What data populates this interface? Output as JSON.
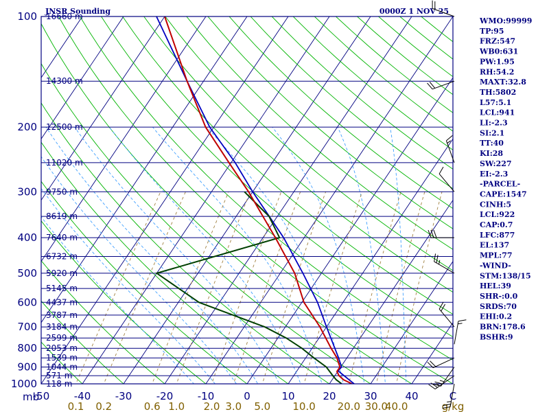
{
  "chart_data": {
    "type": "skew-t",
    "title_left": "JNSR Sounding",
    "title_right": "0000Z  1 NOV 25",
    "pressure_levels": [
      100,
      200,
      300,
      400,
      500,
      600,
      700,
      800,
      900,
      1000
    ],
    "pressure_unit": "mb",
    "temperature_ticks": [
      "-50",
      "-40",
      "-30",
      "-20",
      "-10",
      "0",
      "10",
      "20",
      "30",
      "40"
    ],
    "mixing_ratio_ticks": [
      "0.1",
      "0.2",
      "0.6",
      "1.0",
      "2.0",
      "3.0",
      "5.0",
      "10.0",
      "20.0",
      "30.0",
      "40.0"
    ],
    "mixing_ratio_unit": "g/kg",
    "height_labels": [
      {
        "p": 100,
        "text": "16660 m"
      },
      {
        "p": 150,
        "text": "14300 m"
      },
      {
        "p": 200,
        "text": "12500 m"
      },
      {
        "p": 250,
        "text": "11020 m"
      },
      {
        "p": 300,
        "text": "9750 m"
      },
      {
        "p": 350,
        "text": "8619 m"
      },
      {
        "p": 400,
        "text": "7640 m"
      },
      {
        "p": 450,
        "text": "6732 m"
      },
      {
        "p": 500,
        "text": "5920 m"
      },
      {
        "p": 550,
        "text": "5145 m"
      },
      {
        "p": 600,
        "text": "4437 m"
      },
      {
        "p": 650,
        "text": "3787 m"
      },
      {
        "p": 700,
        "text": "3184 m"
      },
      {
        "p": 750,
        "text": "2599 m"
      },
      {
        "p": 800,
        "text": "2053 m"
      },
      {
        "p": 850,
        "text": "1539 m"
      },
      {
        "p": 900,
        "text": "1044 m"
      },
      {
        "p": 950,
        "text": "571 m"
      },
      {
        "p": 1000,
        "text": "118 m"
      }
    ],
    "temperature_profile": [
      {
        "p": 1000,
        "t": 25.5
      },
      {
        "p": 975,
        "t": 22.8
      },
      {
        "p": 950,
        "t": 21.0
      },
      {
        "p": 925,
        "t": 19.8
      },
      {
        "p": 900,
        "t": 19.8
      },
      {
        "p": 850,
        "t": 17.6
      },
      {
        "p": 800,
        "t": 14.6
      },
      {
        "p": 700,
        "t": 8.4
      },
      {
        "p": 600,
        "t": 0.5
      },
      {
        "p": 500,
        "t": -6.5
      },
      {
        "p": 400,
        "t": -17.0
      },
      {
        "p": 300,
        "t": -31.0
      },
      {
        "p": 250,
        "t": -40.5
      },
      {
        "p": 200,
        "t": -52.0
      },
      {
        "p": 150,
        "t": -64.0
      },
      {
        "p": 100,
        "t": -80.0
      }
    ],
    "dewpoint_profile": [
      {
        "p": 1000,
        "t": 23.0
      },
      {
        "p": 975,
        "t": 21.0
      },
      {
        "p": 950,
        "t": 19.5
      },
      {
        "p": 900,
        "t": 16.5
      },
      {
        "p": 850,
        "t": 12.0
      },
      {
        "p": 800,
        "t": 7.5
      },
      {
        "p": 750,
        "t": 2.0
      },
      {
        "p": 700,
        "t": -5.0
      },
      {
        "p": 600,
        "t": -25.0
      },
      {
        "p": 500,
        "t": -40.0
      },
      {
        "p": 400,
        "t": -16.0
      },
      {
        "p": 350,
        "t": -22.0
      },
      {
        "p": 300,
        "t": -32.0
      }
    ],
    "parcel_profile": [
      {
        "p": 1000,
        "t": 26.0
      },
      {
        "p": 922,
        "t": 20.0
      },
      {
        "p": 900,
        "t": 20.2
      },
      {
        "p": 850,
        "t": 18.0
      },
      {
        "p": 800,
        "t": 15.5
      },
      {
        "p": 700,
        "t": 10.0
      },
      {
        "p": 600,
        "t": 3.8
      },
      {
        "p": 500,
        "t": -4.5
      },
      {
        "p": 400,
        "t": -15.0
      },
      {
        "p": 300,
        "t": -30.0
      },
      {
        "p": 250,
        "t": -39.0
      },
      {
        "p": 200,
        "t": -51.0
      },
      {
        "p": 150,
        "t": -64.0
      },
      {
        "p": 100,
        "t": -82.0
      }
    ],
    "colors": {
      "frame": "#000080",
      "isobar": "#000080",
      "isotherm": "#000080",
      "dry_adiabat": "#00b400",
      "moist_adiabat": "#40a0ff",
      "mixing_ratio": "#a08040",
      "temperature": "#c00000",
      "dewpoint": "#004000",
      "parcel": "#0000c0",
      "barb": "#000000"
    },
    "winds": [
      {
        "p": 1000,
        "dir": 190,
        "spd": 25
      },
      {
        "p": 950,
        "dir": 235,
        "spd": 25
      },
      {
        "p": 900,
        "dir": 215,
        "spd": 25
      },
      {
        "p": 850,
        "dir": 245,
        "spd": 20
      },
      {
        "p": 780,
        "dir": 10,
        "spd": 15
      },
      {
        "p": 700,
        "dir": 320,
        "spd": 20
      },
      {
        "p": 500,
        "dir": 300,
        "spd": 25
      },
      {
        "p": 400,
        "dir": 270,
        "spd": 30
      },
      {
        "p": 300,
        "dir": 320,
        "spd": 10
      },
      {
        "p": 250,
        "dir": 340,
        "spd": 15
      },
      {
        "p": 150,
        "dir": 250,
        "spd": 20
      },
      {
        "p": 100,
        "dir": 290,
        "spd": 20
      }
    ],
    "indices": [
      "WMO:99999",
      "TP:95",
      "FRZ:547",
      "WB0:631",
      "PW:1.95",
      "RH:54.2",
      "MAXT:32.8",
      "TH:5802",
      "L57:5.1",
      "LCL:941",
      "LI:-2.3",
      "SI:2.1",
      "TT:40",
      "KI:28",
      "SW:227",
      "EI:-2.3",
      "-PARCEL-",
      "CAPE:1547",
      "CINH:5",
      "LCL:922",
      "CAP:0.7",
      "LFC:877",
      "EL:137",
      "MPL:77",
      "-WIND-",
      "STM:138/15",
      "HEL:39",
      "SHR-:0.0",
      "SRDS:70",
      "EHI:0.2",
      "BRN:178.6",
      "BSHR:9"
    ]
  }
}
